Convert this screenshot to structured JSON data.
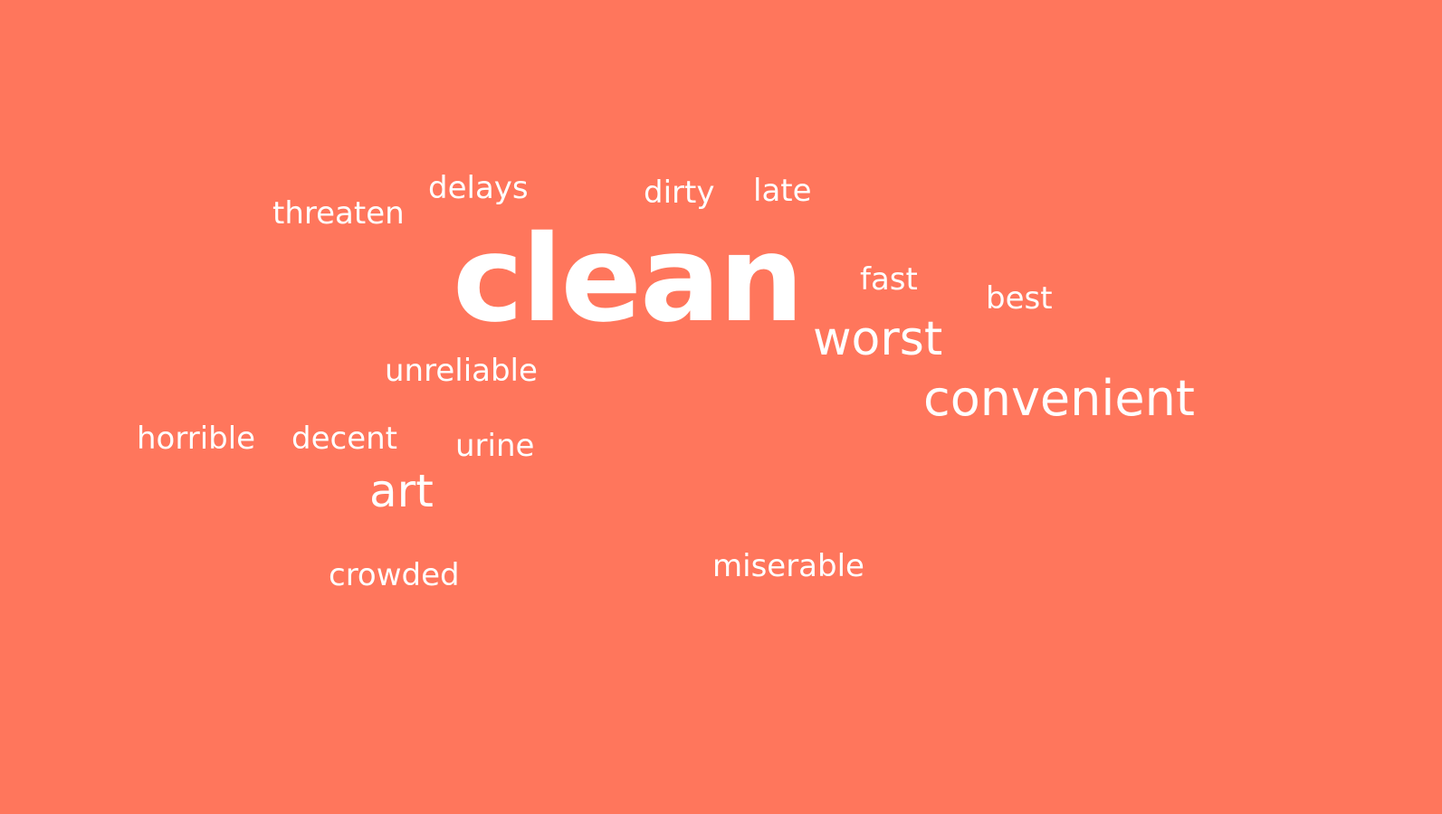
{
  "colors": {
    "background": "#FF765C",
    "text": "#FFFFFF"
  },
  "words": {
    "clean": "clean",
    "convenient": "convenient",
    "worst": "worst",
    "art": "art",
    "threaten": "threaten",
    "delays": "delays",
    "dirty": "dirty",
    "late": "late",
    "fast": "fast",
    "best": "best",
    "unreliable": "unreliable",
    "horrible": "horrible",
    "decent": "decent",
    "urine": "urine",
    "crowded": "crowded",
    "miserable": "miserable"
  }
}
